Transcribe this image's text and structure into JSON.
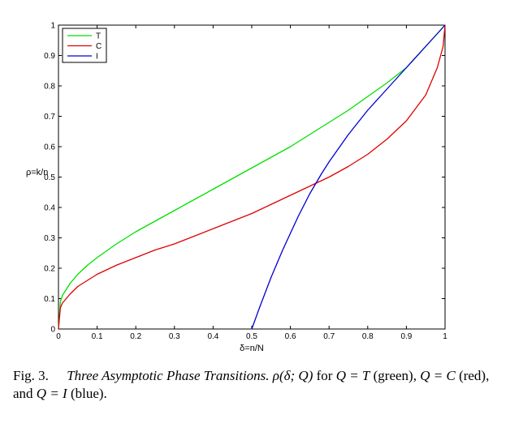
{
  "chart_data": {
    "type": "line",
    "title": "",
    "xlabel": "δ=n/N",
    "ylabel": "ρ=k/n",
    "xlim": [
      0,
      1
    ],
    "ylim": [
      0,
      1
    ],
    "grid": false,
    "legend_position": "top-left",
    "x_ticks": [
      "0",
      "0.1",
      "0.2",
      "0.3",
      "0.4",
      "0.5",
      "0.6",
      "0.7",
      "0.8",
      "0.9",
      "1"
    ],
    "y_ticks": [
      "0",
      "0.1",
      "0.2",
      "0.3",
      "0.4",
      "0.5",
      "0.6",
      "0.7",
      "0.8",
      "0.9",
      "1"
    ],
    "series": [
      {
        "name": "T",
        "color": "#00e000",
        "x": [
          0,
          0.005,
          0.01,
          0.02,
          0.03,
          0.05,
          0.075,
          0.1,
          0.15,
          0.2,
          0.25,
          0.3,
          0.35,
          0.4,
          0.45,
          0.5,
          0.55,
          0.6,
          0.65,
          0.7,
          0.75,
          0.8,
          0.85,
          0.9,
          0.95,
          1
        ],
        "y": [
          0,
          0.09,
          0.11,
          0.13,
          0.15,
          0.18,
          0.21,
          0.235,
          0.28,
          0.32,
          0.355,
          0.39,
          0.425,
          0.46,
          0.495,
          0.53,
          0.565,
          0.6,
          0.64,
          0.68,
          0.72,
          0.765,
          0.81,
          0.86,
          0.93,
          1
        ]
      },
      {
        "name": "C",
        "color": "#e00000",
        "x": [
          0,
          0.005,
          0.01,
          0.02,
          0.03,
          0.05,
          0.075,
          0.1,
          0.15,
          0.2,
          0.25,
          0.3,
          0.35,
          0.4,
          0.45,
          0.5,
          0.55,
          0.6,
          0.65,
          0.7,
          0.75,
          0.8,
          0.85,
          0.9,
          0.95,
          0.98,
          0.995,
          1
        ],
        "y": [
          0,
          0.07,
          0.085,
          0.1,
          0.115,
          0.14,
          0.16,
          0.18,
          0.21,
          0.235,
          0.26,
          0.28,
          0.305,
          0.33,
          0.355,
          0.38,
          0.41,
          0.44,
          0.47,
          0.5,
          0.535,
          0.575,
          0.625,
          0.685,
          0.77,
          0.86,
          0.93,
          1
        ]
      },
      {
        "name": "I",
        "color": "#0000d0",
        "x": [
          0.5,
          0.52,
          0.55,
          0.58,
          0.6,
          0.62,
          0.65,
          0.68,
          0.7,
          0.75,
          0.8,
          0.85,
          0.9,
          0.95,
          1
        ],
        "y": [
          0,
          0.07,
          0.17,
          0.26,
          0.315,
          0.37,
          0.445,
          0.51,
          0.55,
          0.64,
          0.72,
          0.79,
          0.86,
          0.93,
          1
        ]
      }
    ]
  },
  "caption": {
    "fig_num": "Fig. 3.",
    "fig_title": "Three Asymptotic Phase Transitions.",
    "rho": "ρ(δ; Q)",
    "text1": " for ",
    "qt": "Q = T",
    "text2": " (green),",
    "qc": "Q = C",
    "text3": " (red), and ",
    "qi": "Q = I",
    "text4": " (blue)."
  }
}
